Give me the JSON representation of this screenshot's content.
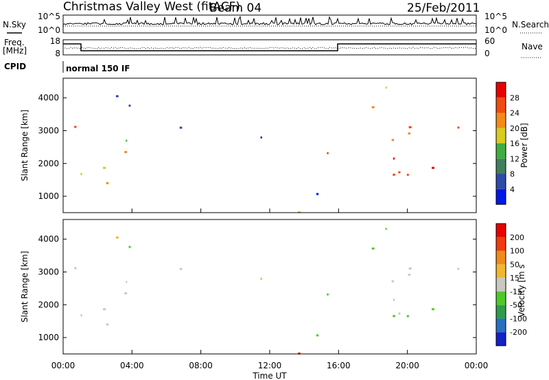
{
  "header": {
    "title": "Christmas Valley West (fitACF)",
    "beam": "Beam 04",
    "date": "25/Feb/2011"
  },
  "sky_panel": {
    "left_label": "N.Sky",
    "right_label": "N.Search",
    "left_ticks": [
      "10^5",
      "10^0"
    ],
    "right_ticks": [
      "10^5",
      "10^0"
    ]
  },
  "freq_panel": {
    "left_label_1": "Freq.",
    "left_label_2": "[MHz]",
    "right_label": "Nave",
    "left_ticks": [
      "18",
      "8"
    ],
    "right_ticks": [
      "60",
      "0"
    ]
  },
  "cpid_panel": {
    "label": "CPID",
    "mode": "normal 150 IF"
  },
  "chart_data": [
    {
      "type": "heatmap",
      "name": "power",
      "ylabel": "Slant Range [km]",
      "yticks": [
        "1000",
        "2000",
        "3000",
        "4000"
      ],
      "ylim": [
        500,
        4600
      ],
      "xlim_hours": [
        0,
        24
      ],
      "colorbar": {
        "label": "Power [dB]",
        "ticks": [
          "4",
          "8",
          "12",
          "16",
          "20",
          "24",
          "28"
        ],
        "colors": [
          "#0018e8",
          "#2f4aa8",
          "#3f7f5c",
          "#3fae3f",
          "#d7cc20",
          "#f28a18",
          "#f04a10",
          "#e80000"
        ]
      }
    },
    {
      "type": "heatmap",
      "name": "velocity",
      "ylabel": "Slant Range [km]",
      "yticks": [
        "1000",
        "2000",
        "3000",
        "4000"
      ],
      "ylim": [
        500,
        4600
      ],
      "xlim_hours": [
        0,
        24
      ],
      "xlabel": "Time UT",
      "xticks": [
        "00:00",
        "04:00",
        "08:00",
        "12:00",
        "16:00",
        "20:00",
        "00:00"
      ],
      "colorbar": {
        "label": "Velocity [m s",
        "ticks": [
          "200",
          "100",
          "50",
          "15",
          "-15",
          "-50",
          "-100",
          "-200"
        ],
        "colors": [
          "#1420c8",
          "#2870c0",
          "#2e9c4c",
          "#4ec82a",
          "#c8c8c0",
          "#f0b830",
          "#f08a18",
          "#f03a10",
          "#e80000"
        ]
      }
    }
  ]
}
